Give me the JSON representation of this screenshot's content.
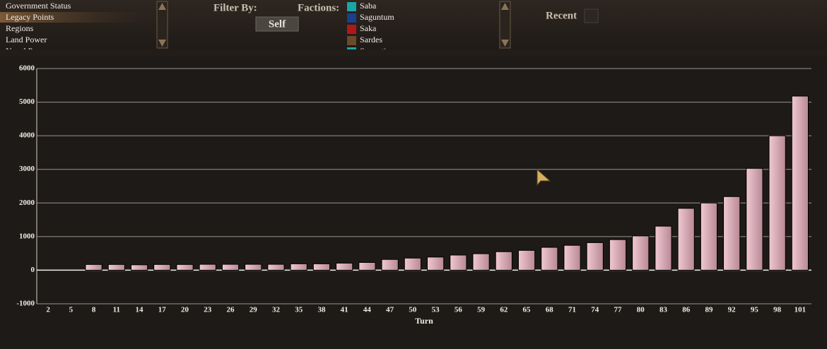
{
  "menu": {
    "items": [
      "Government Status",
      "Legacy Points",
      "Regions",
      "Land Power",
      "Naval Power"
    ]
  },
  "filter": {
    "label": "Filter By:",
    "button": "Self"
  },
  "factions": {
    "label": "Factions:",
    "items": [
      "Saba",
      "Saguntum",
      "Saka",
      "Sardes",
      "Sarmatia"
    ]
  },
  "recent": {
    "label": "Recent"
  },
  "chart_data": {
    "type": "bar",
    "x_label": "Turn",
    "categories": [
      2,
      5,
      8,
      11,
      14,
      17,
      20,
      23,
      26,
      29,
      32,
      35,
      38,
      41,
      44,
      47,
      50,
      53,
      56,
      59,
      62,
      65,
      68,
      71,
      74,
      77,
      80,
      83,
      86,
      89,
      92,
      95,
      98,
      101
    ],
    "values": [
      0,
      0,
      170,
      170,
      160,
      170,
      170,
      175,
      175,
      175,
      175,
      190,
      190,
      210,
      230,
      320,
      360,
      390,
      450,
      490,
      550,
      590,
      680,
      740,
      820,
      910,
      1020,
      1310,
      1840,
      2000,
      2190,
      3030,
      4000,
      5180
    ],
    "color": "#dcaab8",
    "ylim": [
      -1000,
      6000
    ],
    "yticks": [
      -1000,
      0,
      1000,
      2000,
      3000,
      4000,
      5000,
      6000
    ],
    "grid": true
  }
}
